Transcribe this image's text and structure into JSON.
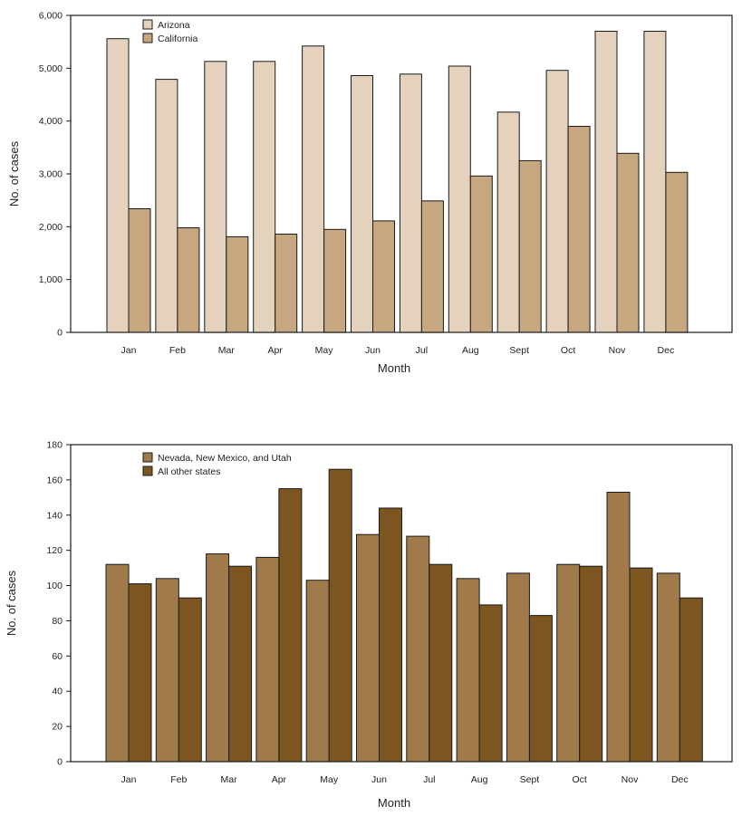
{
  "chart_data": [
    {
      "type": "bar",
      "categories": [
        "Jan",
        "Feb",
        "Mar",
        "Apr",
        "May",
        "Jun",
        "Jul",
        "Aug",
        "Sept",
        "Oct",
        "Nov",
        "Dec"
      ],
      "series": [
        {
          "name": "Arizona",
          "color": "#e4d2bd",
          "values": [
            5560,
            4790,
            5130,
            5130,
            5420,
            4860,
            4890,
            5040,
            4170,
            4960,
            5700,
            5700
          ]
        },
        {
          "name": "California",
          "color": "#c6a77f",
          "values": [
            2340,
            1980,
            1810,
            1860,
            1950,
            2110,
            2490,
            2960,
            3250,
            3900,
            3390,
            3030
          ]
        }
      ],
      "xlabel": "Month",
      "ylabel": "No. of cases",
      "ylim": [
        0,
        6000
      ],
      "yticks": [
        0,
        1000,
        2000,
        3000,
        4000,
        5000,
        6000
      ],
      "ytick_labels": [
        "0",
        "1,000",
        "2,000",
        "3,000",
        "4,000",
        "5,000",
        "6,000"
      ],
      "grid": false,
      "legend_position": "top-left"
    },
    {
      "type": "bar",
      "categories": [
        "Jan",
        "Feb",
        "Mar",
        "Apr",
        "May",
        "Jun",
        "Jul",
        "Aug",
        "Sept",
        "Oct",
        "Nov",
        "Dec"
      ],
      "series": [
        {
          "name": "Nevada, New Mexico, and Utah",
          "color": "#a17a4b",
          "values": [
            112,
            104,
            118,
            116,
            103,
            129,
            128,
            104,
            107,
            112,
            153,
            107
          ]
        },
        {
          "name": "All other states",
          "color": "#7c5520",
          "values": [
            101,
            93,
            111,
            155,
            166,
            144,
            112,
            89,
            83,
            111,
            110,
            93
          ]
        }
      ],
      "xlabel": "Month",
      "ylabel": "No. of cases",
      "ylim": [
        0,
        180
      ],
      "yticks": [
        0,
        20,
        40,
        60,
        80,
        100,
        120,
        140,
        160,
        180
      ],
      "ytick_labels": [
        "0",
        "20",
        "40",
        "60",
        "80",
        "100",
        "120",
        "140",
        "160",
        "180"
      ],
      "grid": false,
      "legend_position": "top-left"
    }
  ]
}
